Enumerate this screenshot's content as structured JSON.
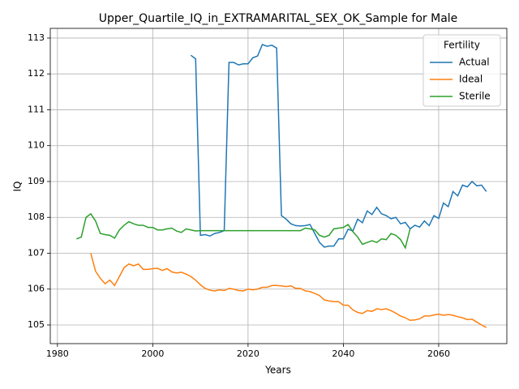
{
  "chart_data": {
    "type": "line",
    "title": "Upper_Quartile_IQ_in_EXTRAMARITAL_SEX_OK_Sample for Male",
    "x_label": "Years",
    "y_label": "IQ",
    "legend_title": "Fertility",
    "legend": "upper right",
    "grid": true,
    "xlim": [
      1978.5,
      2074.3
    ],
    "ylim": [
      104.48,
      113.27
    ],
    "xticks": [
      1980,
      2000,
      2020,
      2040,
      2060
    ],
    "yticks": [
      105,
      106,
      107,
      108,
      109,
      110,
      111,
      112,
      113
    ],
    "x": [
      1984,
      1985,
      1986,
      1987,
      1988,
      1989,
      1990,
      1991,
      1992,
      1993,
      1994,
      1995,
      1996,
      1997,
      1998,
      1999,
      2000,
      2001,
      2002,
      2003,
      2004,
      2005,
      2006,
      2007,
      2008,
      2009,
      2010,
      2011,
      2012,
      2013,
      2014,
      2015,
      2016,
      2017,
      2018,
      2019,
      2020,
      2021,
      2022,
      2023,
      2024,
      2025,
      2026,
      2027,
      2028,
      2029,
      2030,
      2031,
      2032,
      2033,
      2034,
      2035,
      2036,
      2037,
      2038,
      2039,
      2040,
      2041,
      2042,
      2043,
      2044,
      2045,
      2046,
      2047,
      2048,
      2049,
      2050,
      2051,
      2052,
      2053,
      2054,
      2055,
      2056,
      2057,
      2058,
      2059,
      2060,
      2061,
      2062,
      2063,
      2064,
      2065,
      2066,
      2067,
      2068,
      2069,
      2070
    ],
    "series": [
      {
        "name": "Actual",
        "color": "#1f77b4",
        "values": [
          null,
          null,
          null,
          null,
          null,
          null,
          null,
          null,
          null,
          null,
          null,
          null,
          null,
          null,
          null,
          null,
          null,
          null,
          null,
          null,
          null,
          null,
          null,
          null,
          112.52,
          112.42,
          107.5,
          107.52,
          107.48,
          107.55,
          107.58,
          107.63,
          112.32,
          112.32,
          112.25,
          112.28,
          112.28,
          112.45,
          112.5,
          112.82,
          112.77,
          112.8,
          112.72,
          108.05,
          107.95,
          107.82,
          107.77,
          107.76,
          107.77,
          107.8,
          107.55,
          107.3,
          107.17,
          107.2,
          107.2,
          107.4,
          107.4,
          107.67,
          107.62,
          107.95,
          107.85,
          108.18,
          108.08,
          108.28,
          108.1,
          108.05,
          107.96,
          108.0,
          107.82,
          107.86,
          107.68,
          107.78,
          107.73,
          107.9,
          107.77,
          108.05,
          107.97,
          108.4,
          108.3,
          108.72,
          108.6,
          108.9,
          108.85,
          109.0,
          108.88,
          108.9,
          108.72
        ]
      },
      {
        "name": "Ideal",
        "color": "#ff7f0e",
        "values": [
          null,
          null,
          null,
          107.0,
          106.5,
          106.3,
          106.15,
          106.25,
          106.1,
          106.35,
          106.6,
          106.7,
          106.65,
          106.7,
          106.55,
          106.55,
          106.57,
          106.58,
          106.52,
          106.57,
          106.48,
          106.45,
          106.47,
          106.42,
          106.35,
          106.25,
          106.12,
          106.02,
          105.97,
          105.95,
          105.98,
          105.96,
          106.02,
          106.0,
          105.96,
          105.95,
          106.0,
          105.98,
          106.0,
          106.05,
          106.05,
          106.1,
          106.1,
          106.09,
          106.07,
          106.09,
          106.02,
          106.02,
          105.95,
          105.93,
          105.88,
          105.82,
          105.7,
          105.67,
          105.65,
          105.65,
          105.55,
          105.55,
          105.42,
          105.35,
          105.32,
          105.4,
          105.38,
          105.45,
          105.43,
          105.45,
          105.4,
          105.33,
          105.25,
          105.2,
          105.13,
          105.14,
          105.17,
          105.25,
          105.25,
          105.28,
          105.3,
          105.27,
          105.29,
          105.27,
          105.23,
          105.2,
          105.15,
          105.16,
          105.08,
          105.0,
          104.93
        ]
      },
      {
        "name": "Sterile",
        "color": "#2ca02c",
        "values": [
          107.4,
          107.45,
          108.0,
          108.1,
          107.9,
          107.55,
          107.52,
          107.5,
          107.42,
          107.65,
          107.78,
          107.88,
          107.82,
          107.78,
          107.78,
          107.72,
          107.72,
          107.65,
          107.65,
          107.68,
          107.7,
          107.62,
          107.58,
          107.68,
          107.65,
          107.62,
          107.63,
          107.63,
          107.63,
          107.63,
          107.63,
          107.63,
          107.63,
          107.63,
          107.63,
          107.63,
          107.63,
          107.63,
          107.63,
          107.63,
          107.63,
          107.63,
          107.63,
          107.63,
          107.63,
          107.63,
          107.63,
          107.63,
          107.7,
          107.68,
          107.65,
          107.5,
          107.45,
          107.5,
          107.68,
          107.7,
          107.72,
          107.8,
          107.6,
          107.45,
          107.25,
          107.3,
          107.35,
          107.3,
          107.4,
          107.38,
          107.55,
          107.5,
          107.38,
          107.15,
          107.68,
          null,
          null,
          null,
          null,
          null,
          null,
          null,
          null,
          null,
          null,
          null,
          null,
          null,
          null,
          null,
          null
        ]
      }
    ]
  }
}
